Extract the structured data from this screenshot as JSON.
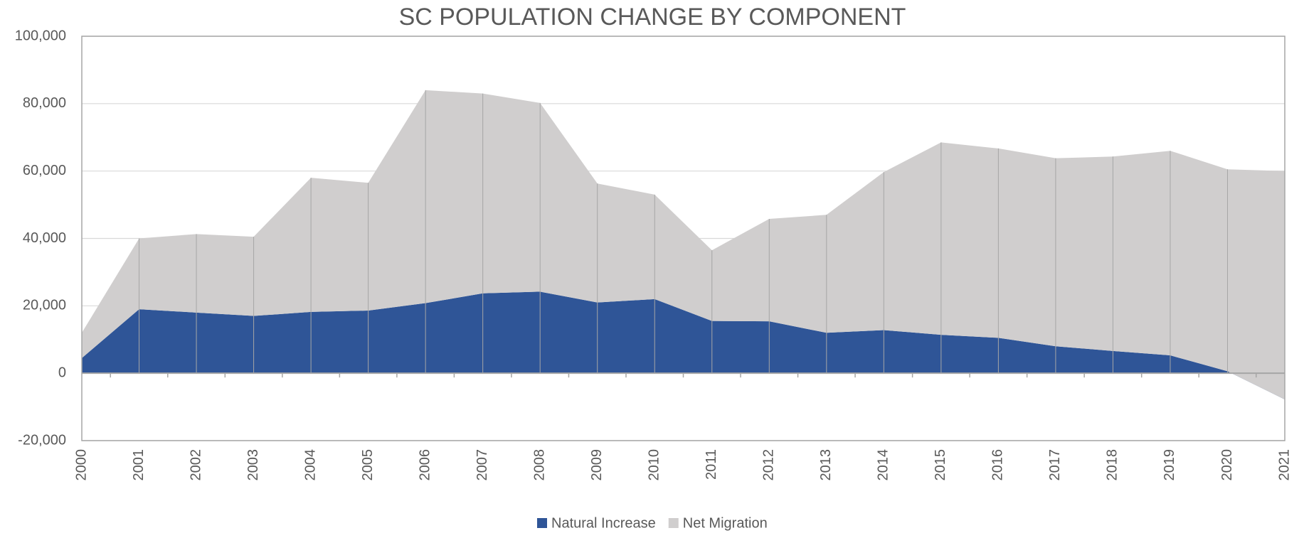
{
  "chart_data": {
    "type": "stacked_area",
    "title": "SC POPULATION CHANGE BY COMPONENT",
    "categories": [
      "2000",
      "2001",
      "2002",
      "2003",
      "2004",
      "2005",
      "2006",
      "2007",
      "2008",
      "2009",
      "2010",
      "2011",
      "2012",
      "2013",
      "2014",
      "2015",
      "2016",
      "2017",
      "2018",
      "2019",
      "2020",
      "2021"
    ],
    "series": [
      {
        "name": "Natural Increase",
        "color": "#2f5597",
        "values": [
          4500,
          19000,
          18000,
          17000,
          18200,
          18600,
          20800,
          23700,
          24200,
          21000,
          22000,
          15500,
          15400,
          12000,
          12800,
          11400,
          10500,
          8000,
          6600,
          5300,
          600,
          -7800
        ]
      },
      {
        "name": "Net Migration",
        "color": "#d0cece",
        "values": [
          7500,
          21000,
          23300,
          23500,
          39800,
          37900,
          63200,
          59300,
          56000,
          35300,
          31000,
          21000,
          30400,
          35000,
          46900,
          57100,
          56200,
          55800,
          57700,
          60700,
          59900,
          67800
        ]
      }
    ],
    "ylim": [
      -20000,
      100000
    ],
    "yticks": [
      {
        "value": -20000,
        "label": "-20,000"
      },
      0,
      {
        "value": 20000,
        "label": "20,000"
      },
      {
        "value": 40000,
        "label": "40,000"
      },
      {
        "value": 60000,
        "label": "60,000"
      },
      {
        "value": 80000,
        "label": "80,000"
      },
      {
        "value": 100000,
        "label": "100,000"
      }
    ],
    "grid": true,
    "legend": "bottom"
  }
}
